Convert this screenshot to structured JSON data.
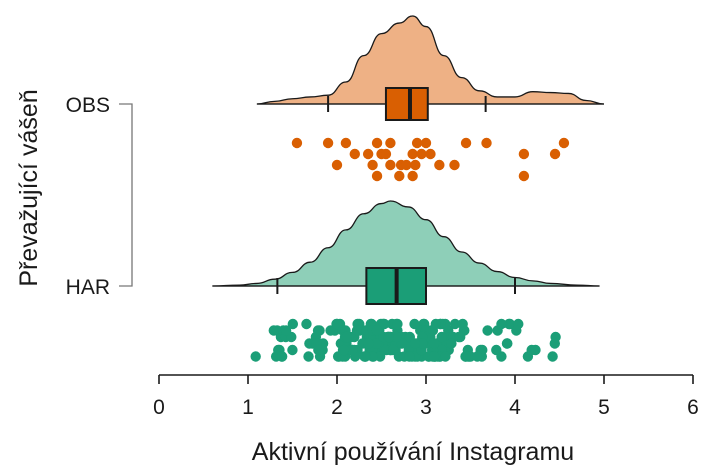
{
  "chart_data": {
    "type": "raincloud",
    "xlabel": "Aktivní používání Instagramu",
    "ylabel": "Převažující vášeň",
    "xlim": [
      0,
      6
    ],
    "x_ticks": [
      "0",
      "1",
      "2",
      "3",
      "4",
      "5",
      "6"
    ],
    "categories": [
      "OBS",
      "HAR"
    ],
    "series": [
      {
        "category": "OBS",
        "color": "#d95f02",
        "fill": "#eeb185",
        "range": [
          1.1,
          5.0
        ],
        "density": [
          [
            1.1,
            0.0
          ],
          [
            1.3,
            0.03
          ],
          [
            1.5,
            0.06
          ],
          [
            1.7,
            0.08
          ],
          [
            1.9,
            0.1
          ],
          [
            2.1,
            0.25
          ],
          [
            2.3,
            0.55
          ],
          [
            2.5,
            0.8
          ],
          [
            2.7,
            0.92
          ],
          [
            2.85,
            1.0
          ],
          [
            3.0,
            0.88
          ],
          [
            3.2,
            0.55
          ],
          [
            3.4,
            0.3
          ],
          [
            3.6,
            0.15
          ],
          [
            3.8,
            0.08
          ],
          [
            4.0,
            0.08
          ],
          [
            4.2,
            0.14
          ],
          [
            4.4,
            0.13
          ],
          [
            4.6,
            0.12
          ],
          [
            4.8,
            0.04
          ],
          [
            5.0,
            0.0
          ]
        ],
        "box": {
          "q1": 2.55,
          "median": 2.82,
          "q3": 3.02,
          "whisker_low": 1.9,
          "whisker_high": 3.67
        },
        "points": [
          [
            1.55,
            0
          ],
          [
            1.9,
            0
          ],
          [
            2.1,
            0
          ],
          [
            2.45,
            0
          ],
          [
            2.6,
            0
          ],
          [
            2.9,
            0
          ],
          [
            3.0,
            0
          ],
          [
            3.45,
            0
          ],
          [
            3.68,
            0
          ],
          [
            4.55,
            0
          ],
          [
            2.2,
            1
          ],
          [
            2.35,
            1
          ],
          [
            2.5,
            1
          ],
          [
            2.55,
            1
          ],
          [
            2.85,
            1
          ],
          [
            2.95,
            1
          ],
          [
            3.05,
            1
          ],
          [
            4.1,
            1
          ],
          [
            4.45,
            1
          ],
          [
            2.0,
            2
          ],
          [
            2.4,
            2
          ],
          [
            2.6,
            2
          ],
          [
            2.72,
            2
          ],
          [
            2.78,
            2
          ],
          [
            2.88,
            2
          ],
          [
            3.15,
            2
          ],
          [
            3.32,
            2
          ],
          [
            2.45,
            3
          ],
          [
            2.7,
            3
          ],
          [
            2.85,
            3
          ],
          [
            4.1,
            3
          ]
        ]
      },
      {
        "category": "HAR",
        "color": "#1b9e77",
        "fill": "#8ecfb8",
        "range": [
          0.6,
          4.95
        ],
        "density": [
          [
            0.6,
            0.0
          ],
          [
            0.9,
            0.01
          ],
          [
            1.1,
            0.03
          ],
          [
            1.3,
            0.08
          ],
          [
            1.5,
            0.16
          ],
          [
            1.7,
            0.28
          ],
          [
            1.9,
            0.45
          ],
          [
            2.1,
            0.66
          ],
          [
            2.3,
            0.85
          ],
          [
            2.5,
            0.97
          ],
          [
            2.6,
            1.0
          ],
          [
            2.8,
            0.93
          ],
          [
            3.0,
            0.78
          ],
          [
            3.2,
            0.58
          ],
          [
            3.4,
            0.4
          ],
          [
            3.6,
            0.27
          ],
          [
            3.8,
            0.17
          ],
          [
            4.0,
            0.1
          ],
          [
            4.2,
            0.06
          ],
          [
            4.4,
            0.03
          ],
          [
            4.7,
            0.01
          ],
          [
            4.95,
            0.0
          ]
        ],
        "box": {
          "q1": 2.33,
          "median": 2.67,
          "q3": 3.0,
          "whisker_low": 1.33,
          "whisker_high": 4.0
        },
        "n_points": 220,
        "points_x_range": [
          1.0,
          4.6
        ]
      }
    ]
  }
}
